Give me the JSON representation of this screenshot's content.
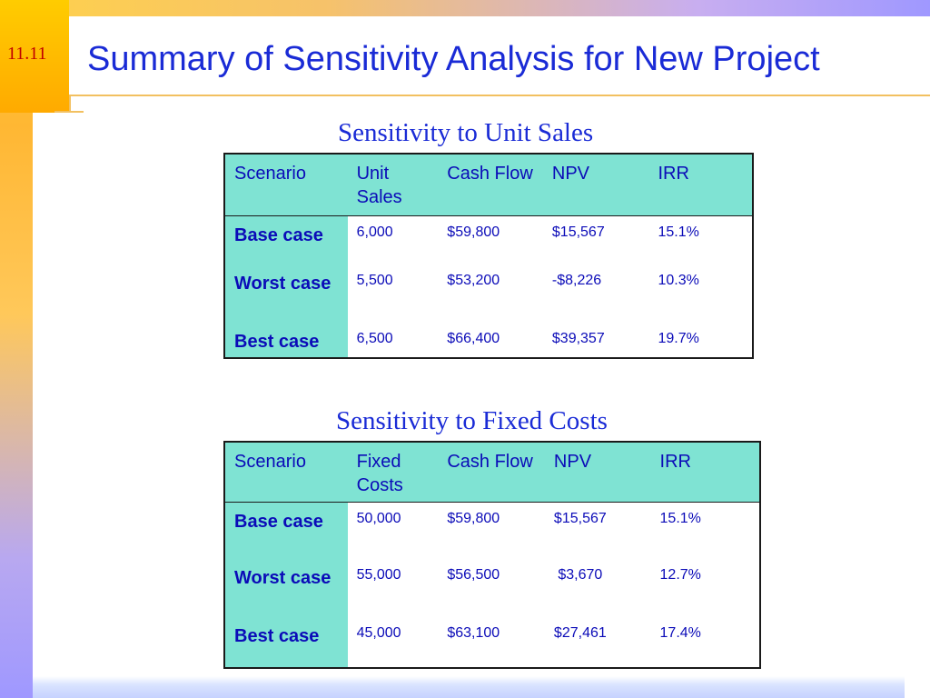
{
  "slide_number": "11.11",
  "title": "Summary of Sensitivity Analysis for New Project",
  "unit_sales_section": {
    "heading": "Sensitivity to Unit Sales",
    "columns": [
      "Scenario",
      "Unit Sales",
      "Cash Flow",
      "NPV",
      "IRR"
    ],
    "rows": [
      {
        "scenario": "Base case",
        "value": "6,000",
        "cash_flow": "$59,800",
        "npv": "$15,567",
        "irr": "15.1%"
      },
      {
        "scenario": "Worst case",
        "value": "5,500",
        "cash_flow": "$53,200",
        "npv": "-$8,226",
        "irr": "10.3%"
      },
      {
        "scenario": "Best case",
        "value": "6,500",
        "cash_flow": "$66,400",
        "npv": "$39,357",
        "irr": "19.7%"
      }
    ]
  },
  "fixed_costs_section": {
    "heading": "Sensitivity to Fixed Costs",
    "columns": [
      "Scenario",
      "Fixed Costs",
      "Cash Flow",
      "NPV",
      "IRR"
    ],
    "rows": [
      {
        "scenario": "Base case",
        "value": "50,000",
        "cash_flow": "$59,800",
        "npv": "$15,567",
        "irr": "15.1%"
      },
      {
        "scenario": "Worst case",
        "value": "55,000",
        "cash_flow": "$56,500",
        "npv": " $3,670",
        "irr": "12.7%"
      },
      {
        "scenario": "Best case",
        "value": "45,000",
        "cash_flow": "$63,100",
        "npv": "$27,461",
        "irr": "17.4%"
      }
    ]
  },
  "colors": {
    "title": "#1a2bd6",
    "table_text": "#0b0bb8",
    "header_fill": "#7fe3d3",
    "slide_number": "#c00000"
  }
}
